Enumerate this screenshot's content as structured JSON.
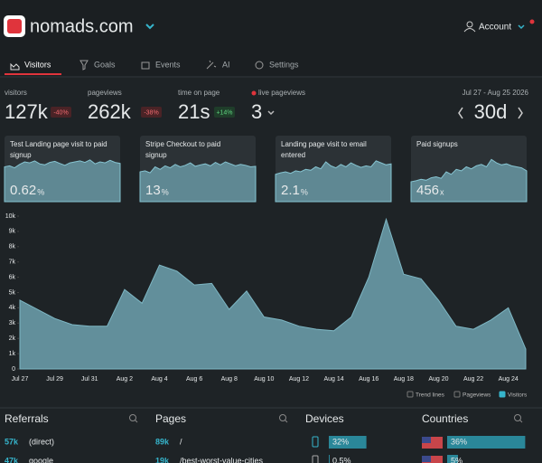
{
  "header": {
    "title": "nomads.com",
    "account": "Account"
  },
  "tabs": [
    "Visitors",
    "Goals",
    "Events",
    "AI",
    "Settings"
  ],
  "stats": [
    {
      "label": "visitors",
      "value": "127k",
      "change": "-40%"
    },
    {
      "label": "pageviews",
      "value": "262k",
      "change": "-38%"
    },
    {
      "label": "time on page",
      "value": "21s",
      "change": "+14%"
    },
    {
      "label": "live pageviews",
      "value": 3
    }
  ],
  "date_range": {
    "label": "Jul 27 - Aug 25 2026",
    "period": "30d"
  },
  "cards": [
    {
      "title": [
        "Test Landing page visit to paid",
        "signup"
      ],
      "value": "0.62",
      "unit": "%",
      "spark": [
        70,
        72,
        68,
        75,
        80,
        78,
        82,
        76,
        74,
        79,
        81,
        77,
        73,
        78,
        80,
        82,
        79,
        84,
        76,
        80,
        78,
        83,
        79,
        77
      ]
    },
    {
      "title": [
        "Stripe Checkout to paid",
        "signup"
      ],
      "value": "13",
      "unit": "%",
      "spark": [
        60,
        62,
        58,
        70,
        65,
        72,
        68,
        75,
        70,
        73,
        78,
        71,
        74,
        76,
        72,
        79,
        74,
        80,
        76,
        72,
        75,
        73,
        70,
        71
      ]
    },
    {
      "title": [
        "Landing page visit to email",
        "entered"
      ],
      "value": "2.1",
      "unit": "%",
      "spark": [
        55,
        58,
        60,
        57,
        62,
        60,
        65,
        63,
        70,
        66,
        80,
        72,
        68,
        75,
        70,
        78,
        73,
        69,
        72,
        70,
        82,
        78,
        74,
        76
      ]
    },
    {
      "title": [
        "Paid signups"
      ],
      "value": "456",
      "unit": "x",
      "spark": [
        40,
        42,
        45,
        43,
        48,
        50,
        47,
        60,
        55,
        65,
        62,
        70,
        66,
        72,
        75,
        70,
        85,
        78,
        74,
        76,
        72,
        70,
        68,
        62
      ]
    }
  ],
  "chart": {
    "type": "area",
    "color": "#628f9b",
    "categories": [
      "Jul 27",
      null,
      "Jul 29",
      null,
      "Jul 31",
      null,
      "Aug 2",
      null,
      "Aug 4",
      null,
      "Aug 6",
      null,
      "Aug 8",
      null,
      "Aug 10",
      null,
      "Aug 12",
      null,
      "Aug 14",
      null,
      "Aug 16",
      null,
      "Aug 18",
      null,
      "Aug 20",
      null,
      "Aug 22",
      null,
      "Aug 24",
      null
    ],
    "values": [
      4500,
      3900,
      3300,
      2900,
      2800,
      2800,
      5200,
      4300,
      6800,
      6400,
      5500,
      5600,
      3900,
      5100,
      3400,
      3200,
      2800,
      2600,
      2500,
      3400,
      6000,
      9800,
      6200,
      5900,
      4500,
      2800,
      2600,
      3200,
      4000,
      1300
    ],
    "ylim": [
      0,
      10000
    ],
    "yticks": [
      0,
      {
        "value": 1000,
        "label": "1k"
      },
      {
        "value": 2000,
        "label": "2k"
      },
      {
        "value": 3000,
        "label": "3k"
      },
      {
        "value": 4000,
        "label": "4k"
      },
      {
        "value": 5000,
        "label": "5k"
      },
      {
        "value": 6000,
        "label": "6k"
      },
      {
        "value": 7000,
        "label": "7k"
      },
      {
        "value": 8000,
        "label": "8k"
      },
      {
        "value": 9000,
        "label": "9k"
      },
      {
        "value": 10000,
        "label": "10k"
      }
    ]
  },
  "legend": [
    "Trend lines",
    "Pageviews",
    "Visitors"
  ],
  "referrals": {
    "title": "Referrals",
    "rows": [
      {
        "count": "57k",
        "label": "(direct)"
      },
      {
        "count": "47k",
        "label": "google"
      }
    ]
  },
  "pages": {
    "title": "Pages",
    "rows": [
      {
        "count": "89k",
        "label": "/"
      },
      {
        "count": "19k",
        "label": "/best-worst-value-cities"
      }
    ]
  },
  "devices": {
    "title": "Devices",
    "rows": [
      {
        "value": 32,
        "label": "32%"
      },
      {
        "value": 0.5,
        "label": "0.5%"
      }
    ]
  },
  "countries": {
    "title": "Countries",
    "rows": [
      {
        "value": 36,
        "label": "36%"
      },
      {
        "value": 5,
        "label": "5%"
      }
    ]
  }
}
